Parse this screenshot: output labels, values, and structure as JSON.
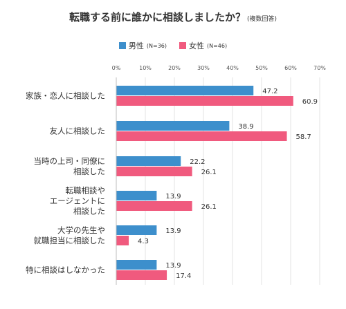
{
  "chart_data": {
    "type": "bar",
    "orientation": "horizontal",
    "title": "転職する前に誰かに相談しましたか？",
    "subtitle": "(複数回答)",
    "x_ticks": [
      "0%",
      "10%",
      "20%",
      "30%",
      "40%",
      "50%",
      "60%",
      "70%"
    ],
    "xlim": [
      0,
      70
    ],
    "grid": true,
    "legend_position": "top-center",
    "categories": [
      [
        "家族・恋人に相談した"
      ],
      [
        "友人に相談した"
      ],
      [
        "当時の上司・同僚に",
        "相談した"
      ],
      [
        "転職相談や",
        "エージェントに",
        "相談した"
      ],
      [
        "大学の先生や",
        "就職担当に相談した"
      ],
      [
        "特に相談はしなかった"
      ]
    ],
    "series": [
      {
        "name": "男性",
        "n_label": "(N=36)",
        "color": "#3d8fcc",
        "values": [
          47.2,
          38.9,
          22.2,
          13.9,
          13.9,
          13.9
        ]
      },
      {
        "name": "女性",
        "n_label": "(N=46)",
        "color": "#f05a7e",
        "values": [
          60.9,
          58.7,
          26.1,
          26.1,
          4.3,
          17.4
        ]
      }
    ]
  }
}
